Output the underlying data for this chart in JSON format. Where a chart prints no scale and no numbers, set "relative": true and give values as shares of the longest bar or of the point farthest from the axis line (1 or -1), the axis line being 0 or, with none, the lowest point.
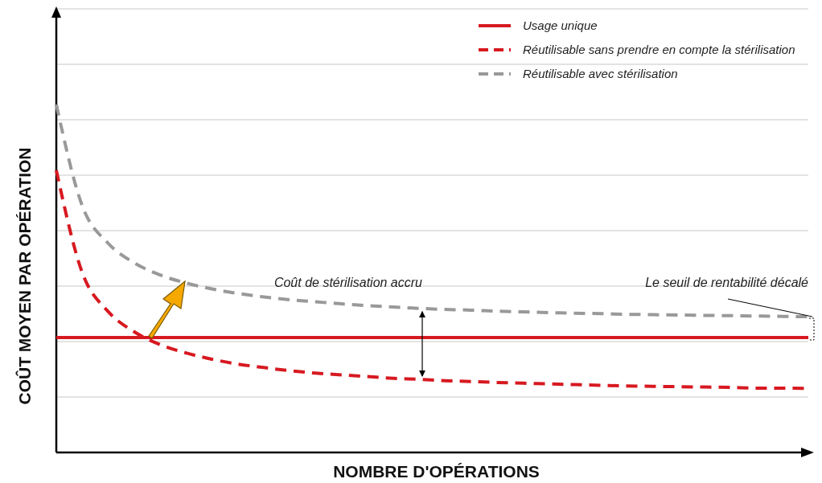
{
  "chart_data": {
    "type": "line",
    "relative": true,
    "xlabel": "NOMBRE D'OPÉRATIONS",
    "ylabel": "COÛT MOYEN PAR OPÉRATION",
    "categories": [
      null,
      null,
      null,
      null,
      null,
      null,
      null,
      null,
      null,
      null,
      null,
      null,
      null,
      null,
      null,
      null,
      null,
      null,
      null,
      null,
      null,
      null,
      null,
      null,
      null,
      null,
      null,
      null,
      null,
      null
    ],
    "series": [
      {
        "name": "Usage unique",
        "color": "#d71920",
        "line_style": "solid",
        "values": [
          0.33,
          0.33,
          0.33,
          0.33,
          0.33,
          0.33,
          0.33,
          0.33,
          0.33,
          0.33,
          0.33,
          0.33,
          0.33,
          0.33,
          0.33,
          0.33,
          0.33,
          0.33,
          0.33,
          0.33,
          0.33,
          0.33,
          0.33,
          0.33,
          0.33,
          0.33,
          0.33,
          0.33,
          0.33,
          0.33
        ]
      },
      {
        "name": "Réutilisable sans prendre en compte la stérilisation",
        "color": "#d71920",
        "line_style": "dashed",
        "values": [
          0.811,
          0.517,
          0.405,
          0.347,
          0.31,
          0.286,
          0.268,
          0.254,
          0.244,
          0.235,
          0.228,
          0.223,
          0.218,
          0.213,
          0.21,
          0.206,
          0.204,
          0.201,
          0.199,
          0.197,
          0.195,
          0.193,
          0.191,
          0.19,
          0.189,
          0.188,
          0.187,
          0.185,
          0.185,
          0.184
        ]
      },
      {
        "name": "Réutilisable avec stérilisation",
        "color": "#999999",
        "line_style": "dashed",
        "values": [
          1.0,
          0.709,
          0.601,
          0.545,
          0.51,
          0.487,
          0.47,
          0.457,
          0.447,
          0.439,
          0.433,
          0.427,
          0.422,
          0.418,
          0.414,
          0.411,
          0.409,
          0.406,
          0.404,
          0.402,
          0.4,
          0.399,
          0.397,
          0.396,
          0.395,
          0.394,
          0.393,
          0.392,
          0.391,
          0.39
        ]
      }
    ],
    "annotations": [
      "Coût de stérilisation accru",
      "Le seuil de rentabilité décalé"
    ],
    "grid": true,
    "legend": "top right"
  }
}
